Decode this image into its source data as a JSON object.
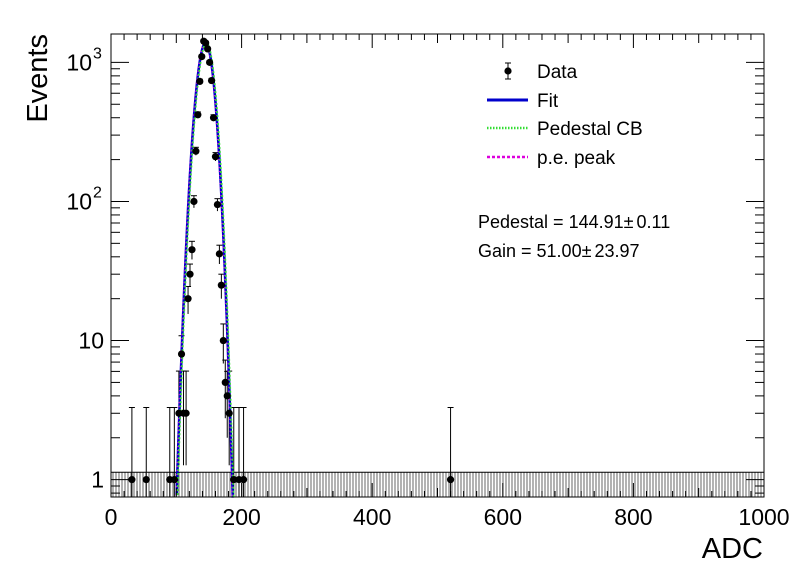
{
  "chart_data": {
    "type": "scatter",
    "xlabel": "ADC",
    "ylabel": "Events",
    "xlim": [
      0,
      1000
    ],
    "ylim": [
      0.75,
      1600
    ],
    "yscale": "log",
    "grid": false,
    "legend_position": "top-right",
    "x_ticks": [
      {
        "value": 0,
        "label": "0"
      },
      {
        "value": 200,
        "label": "200"
      },
      {
        "value": 400,
        "label": "400"
      },
      {
        "value": 600,
        "label": "600"
      },
      {
        "value": 800,
        "label": "800"
      },
      {
        "value": 1000,
        "label": "1000"
      }
    ],
    "y_ticks": [
      {
        "value": 1,
        "base": "1",
        "exp": ""
      },
      {
        "value": 10,
        "base": "10",
        "exp": ""
      },
      {
        "value": 100,
        "base": "10",
        "exp": "2"
      },
      {
        "value": 1000,
        "base": "10",
        "exp": "3"
      }
    ],
    "series": [
      {
        "name": "Data",
        "style": "points-with-errors",
        "color": "#000000",
        "points": [
          {
            "x": 32,
            "y": 1
          },
          {
            "x": 54,
            "y": 1
          },
          {
            "x": 90,
            "y": 1
          },
          {
            "x": 97,
            "y": 1
          },
          {
            "x": 104,
            "y": 3
          },
          {
            "x": 108,
            "y": 8
          },
          {
            "x": 111,
            "y": 3
          },
          {
            "x": 115,
            "y": 3
          },
          {
            "x": 118,
            "y": 20
          },
          {
            "x": 121,
            "y": 30
          },
          {
            "x": 124,
            "y": 45
          },
          {
            "x": 127,
            "y": 100
          },
          {
            "x": 130,
            "y": 230
          },
          {
            "x": 133,
            "y": 420
          },
          {
            "x": 136,
            "y": 730
          },
          {
            "x": 139,
            "y": 1100
          },
          {
            "x": 142,
            "y": 1420
          },
          {
            "x": 145,
            "y": 1380
          },
          {
            "x": 148,
            "y": 1250
          },
          {
            "x": 151,
            "y": 1000
          },
          {
            "x": 154,
            "y": 740
          },
          {
            "x": 157,
            "y": 400
          },
          {
            "x": 160,
            "y": 210
          },
          {
            "x": 163,
            "y": 95
          },
          {
            "x": 166,
            "y": 42
          },
          {
            "x": 169,
            "y": 25
          },
          {
            "x": 172,
            "y": 10
          },
          {
            "x": 175,
            "y": 5
          },
          {
            "x": 178,
            "y": 4
          },
          {
            "x": 181,
            "y": 3
          },
          {
            "x": 188,
            "y": 1
          },
          {
            "x": 196,
            "y": 1
          },
          {
            "x": 203,
            "y": 1
          },
          {
            "x": 520,
            "y": 1
          }
        ]
      },
      {
        "name": "Fit",
        "style": "solid",
        "color": "#0000cc"
      },
      {
        "name": "Pedestal CB",
        "style": "dotted",
        "color": "#33dd33"
      },
      {
        "name": "p.e. peak",
        "style": "dotted",
        "color": "#dd00dd"
      }
    ],
    "fit": {
      "amplitude": 1380,
      "mean": 145,
      "sigma": 11.5
    },
    "annotations": [
      {
        "prefix": "Pedestal = 144.91",
        "pm": "±",
        "value": "0.11"
      },
      {
        "prefix": "Gain = 51.00",
        "pm": "±",
        "value": "23.97"
      }
    ]
  }
}
